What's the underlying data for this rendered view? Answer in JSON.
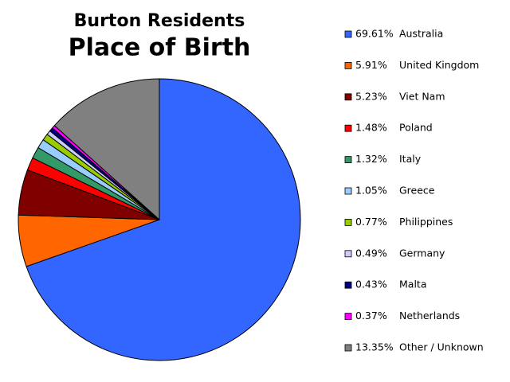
{
  "chart_data": {
    "type": "pie",
    "title": "Burton Residents",
    "subtitle": "Place of Birth",
    "categories": [
      "Australia",
      "United Kingdom",
      "Viet Nam",
      "Poland",
      "Italy",
      "Greece",
      "Philippines",
      "Germany",
      "Malta",
      "Netherlands",
      "Other / Unknown"
    ],
    "values": [
      69.61,
      5.91,
      5.23,
      1.48,
      1.32,
      1.05,
      0.77,
      0.49,
      0.43,
      0.37,
      13.35
    ],
    "value_labels": [
      "69.61%",
      "5.91%",
      "5.23%",
      "1.48%",
      "1.32%",
      "1.05%",
      "0.77%",
      "0.49%",
      "0.43%",
      "0.37%",
      "13.35%"
    ],
    "colors": [
      "#3366ff",
      "#ff6600",
      "#800000",
      "#ff0000",
      "#339966",
      "#99ccff",
      "#99cc00",
      "#ccccff",
      "#000080",
      "#ff00ff",
      "#808080"
    ],
    "legend": "right"
  }
}
